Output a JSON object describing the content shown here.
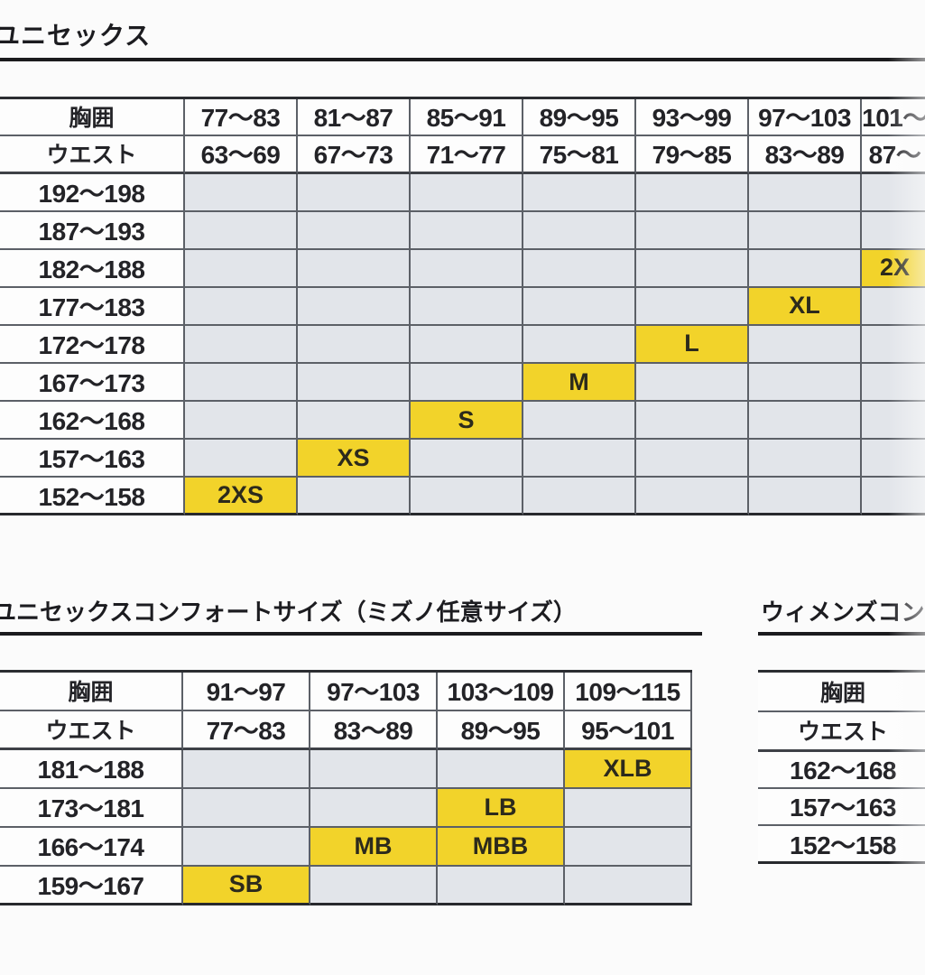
{
  "titles": {
    "unisex": "ユニセックス",
    "comfort": "ユニセックスコンフォートサイズ（ミズノ任意サイズ）",
    "womens": "ウィメンズコン"
  },
  "labels": {
    "chest": "胸囲",
    "waist": "ウエスト"
  },
  "colors": {
    "highlight": "#f2d32a",
    "cell_background": "#e2e5ea",
    "grid_line": "#5c6067"
  },
  "tables": {
    "unisex": {
      "chest_cols": [
        "77〜83",
        "81〜87",
        "85〜91",
        "89〜95",
        "93〜99",
        "97〜103",
        "101〜"
      ],
      "waist_cols": [
        "63〜69",
        "67〜73",
        "71〜77",
        "75〜81",
        "79〜85",
        "83〜89",
        "87〜"
      ],
      "rows": [
        {
          "label": "192〜198",
          "cells": [
            "",
            "",
            "",
            "",
            "",
            "",
            ""
          ]
        },
        {
          "label": "187〜193",
          "cells": [
            "",
            "",
            "",
            "",
            "",
            "",
            ""
          ]
        },
        {
          "label": "182〜188",
          "cells": [
            "",
            "",
            "",
            "",
            "",
            "",
            "2X"
          ]
        },
        {
          "label": "177〜183",
          "cells": [
            "",
            "",
            "",
            "",
            "",
            "XL",
            ""
          ]
        },
        {
          "label": "172〜178",
          "cells": [
            "",
            "",
            "",
            "",
            "L",
            "",
            ""
          ]
        },
        {
          "label": "167〜173",
          "cells": [
            "",
            "",
            "",
            "M",
            "",
            "",
            ""
          ]
        },
        {
          "label": "162〜168",
          "cells": [
            "",
            "",
            "S",
            "",
            "",
            "",
            ""
          ]
        },
        {
          "label": "157〜163",
          "cells": [
            "",
            "XS",
            "",
            "",
            "",
            "",
            ""
          ]
        },
        {
          "label": "152〜158",
          "cells": [
            "2XS",
            "",
            "",
            "",
            "",
            "",
            ""
          ]
        }
      ]
    },
    "comfort": {
      "chest_cols": [
        "91〜97",
        "97〜103",
        "103〜109",
        "109〜115"
      ],
      "waist_cols": [
        "77〜83",
        "83〜89",
        "89〜95",
        "95〜101"
      ],
      "rows": [
        {
          "label": "181〜188",
          "cells": [
            "",
            "",
            "",
            "XLB"
          ]
        },
        {
          "label": "173〜181",
          "cells": [
            "",
            "",
            "LB",
            ""
          ]
        },
        {
          "label": "166〜174",
          "cells": [
            "",
            "MB",
            "MBB",
            ""
          ]
        },
        {
          "label": "159〜167",
          "cells": [
            "SB",
            "",
            "",
            ""
          ]
        }
      ]
    },
    "womens": {
      "chest_cols": [],
      "waist_cols": [],
      "rows": [
        {
          "label": "162〜168",
          "cells": []
        },
        {
          "label": "157〜163",
          "cells": []
        },
        {
          "label": "152〜158",
          "cells": []
        }
      ]
    }
  }
}
